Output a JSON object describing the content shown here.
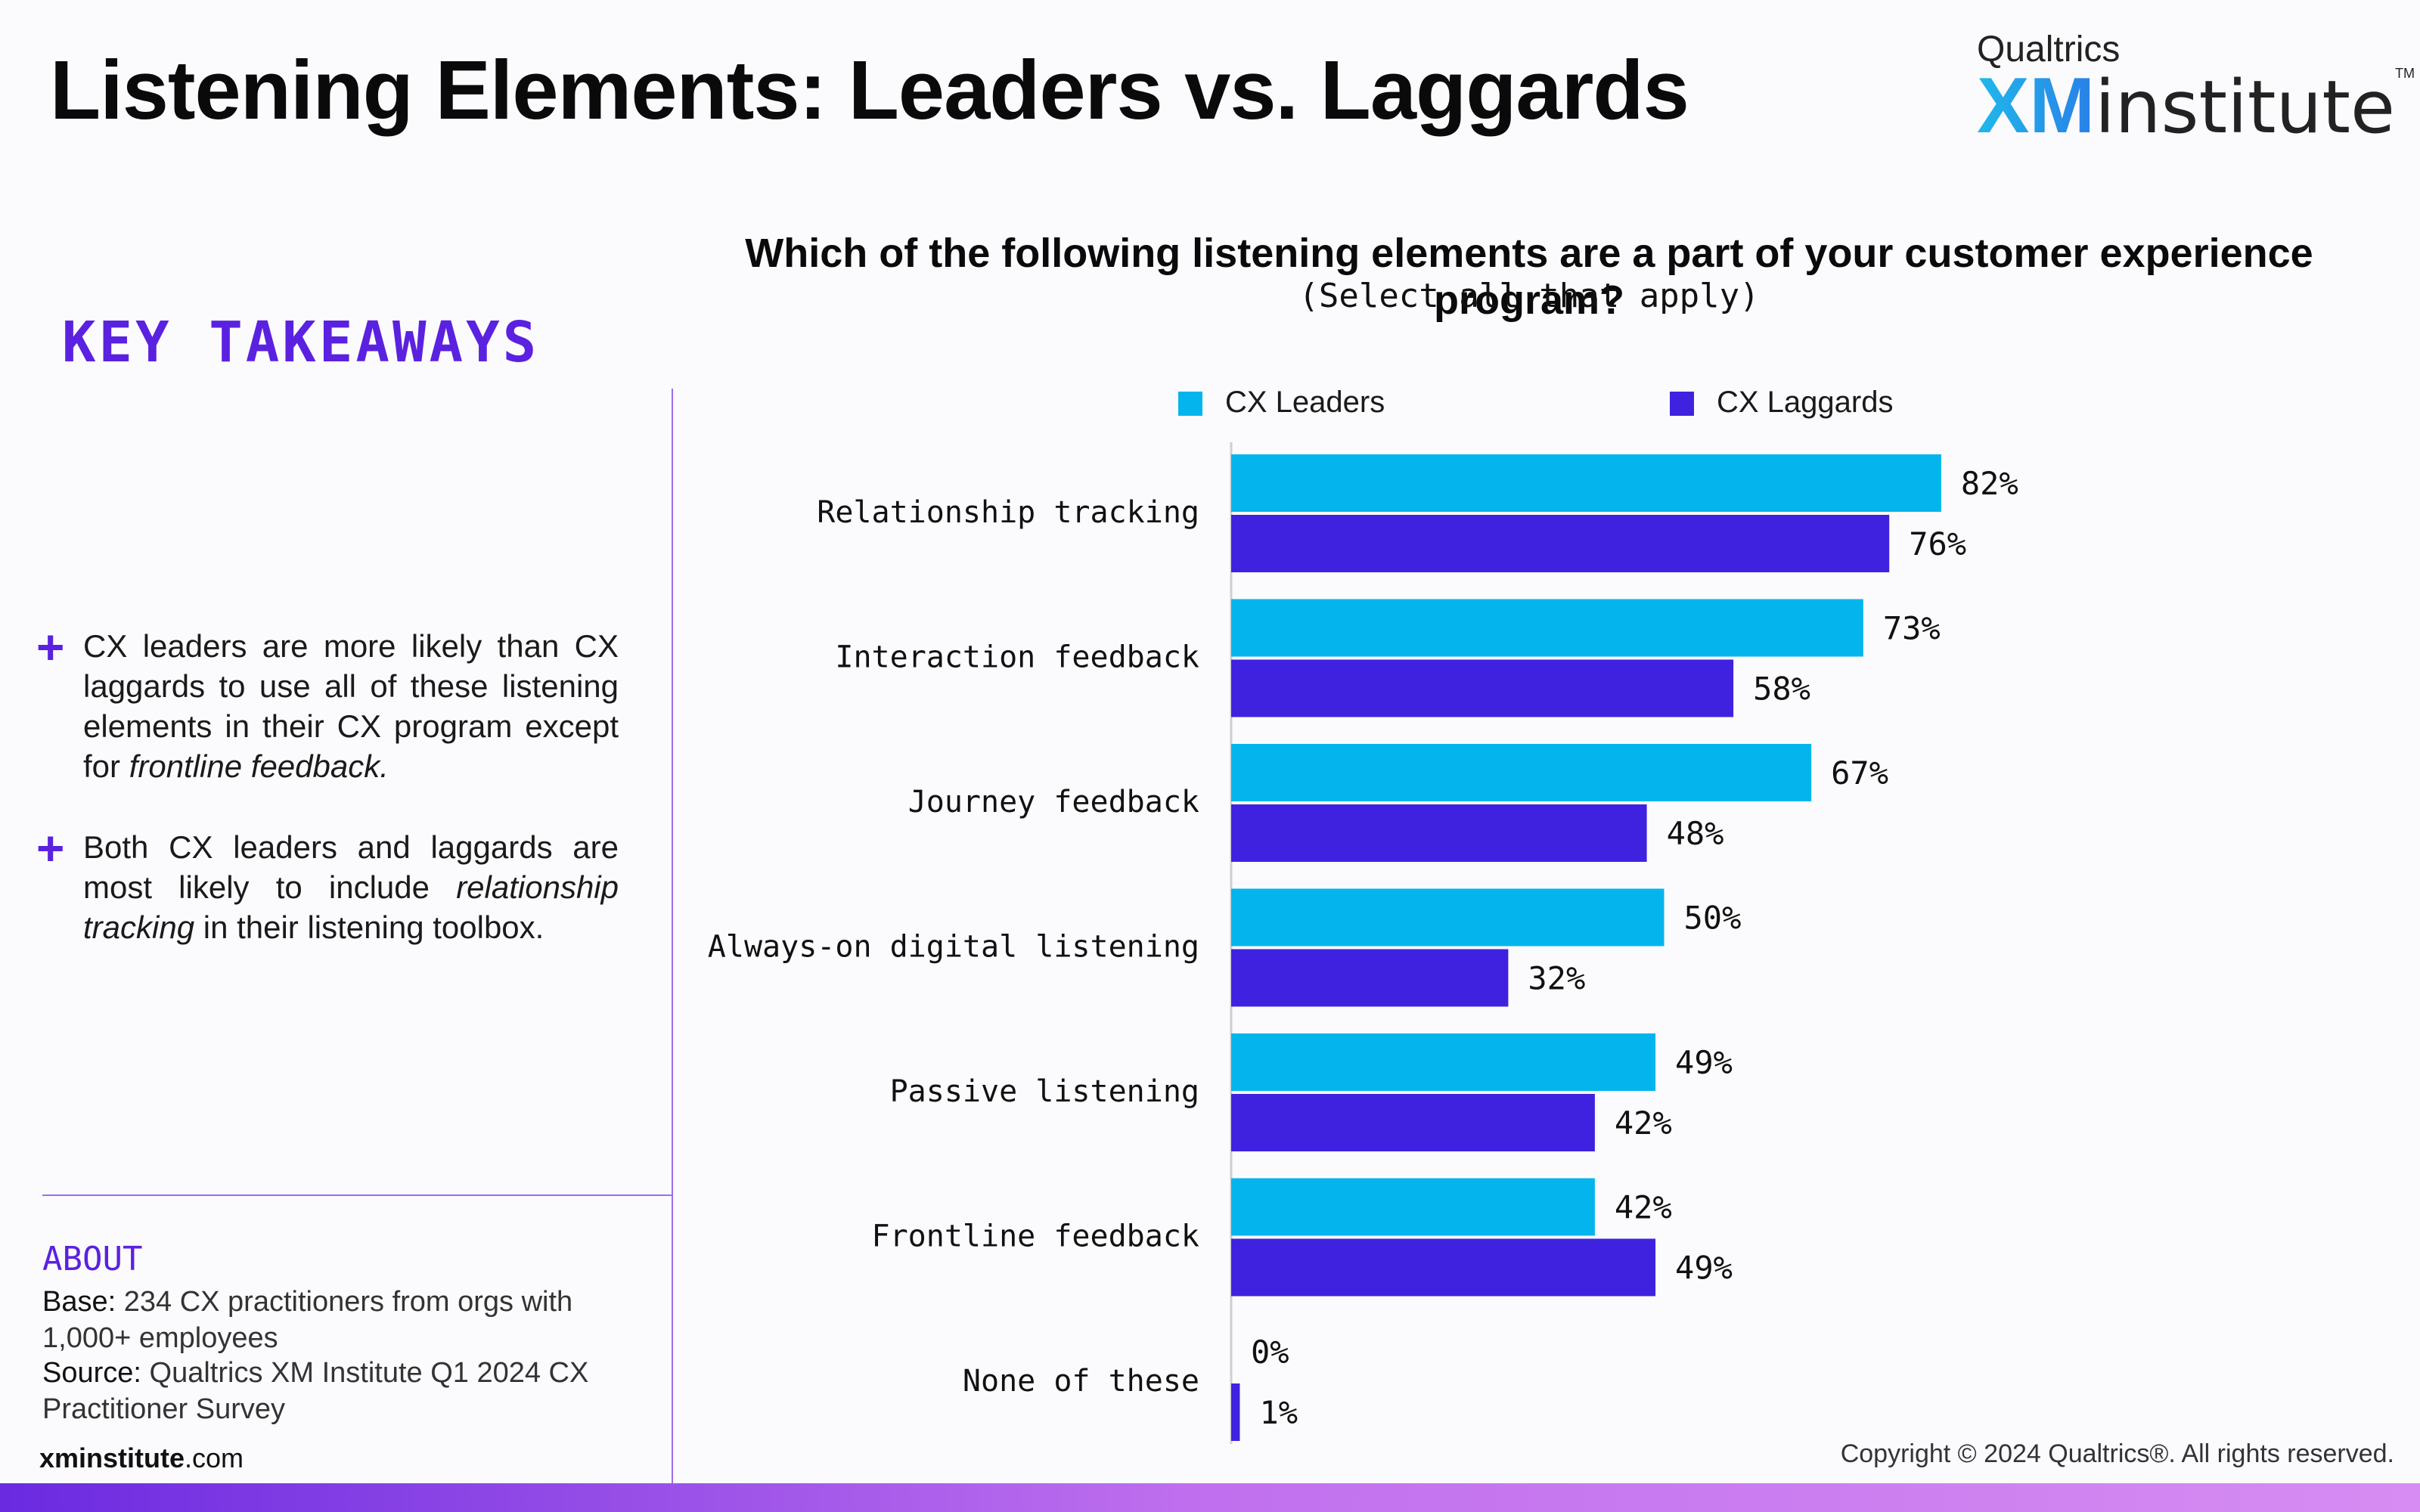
{
  "header": {
    "title": "Listening Elements: Leaders vs. Laggards",
    "logo_top": "Qualtrics",
    "logo_xm": "XM",
    "logo_institute": "institute",
    "logo_tm": "TM"
  },
  "takeaways": {
    "heading": "KEY TAKEAWAYS",
    "bullet1_pre": "CX leaders are more likely than CX laggards to use all of these listening elements in their CX program except for ",
    "bullet1_em": "frontline feedback.",
    "bullet2_pre": "Both CX leaders and laggards are most likely to include ",
    "bullet2_em": "relationship tracking",
    "bullet2_post": " in their listening toolbox."
  },
  "about": {
    "heading": "ABOUT",
    "base_label": "Base:",
    "base_text": " 234 CX practitioners from orgs with 1,000+ employees",
    "source_label": "Source:",
    "source_text": " Qualtrics XM Institute Q1 2024 CX Practitioner Survey",
    "site_bold": "xminstitute",
    "site_rest": ".com"
  },
  "footer": {
    "copyright": "Copyright © 2024 Qualtrics®. All rights reserved."
  },
  "colors": {
    "leaders": "#03b5ec",
    "laggards": "#3f22df",
    "accent": "#5b21e0"
  },
  "chart_data": {
    "type": "bar",
    "orientation": "horizontal",
    "title": "Which of the following listening elements are a part of your customer experience program?",
    "subtitle": "(Select all that apply)",
    "categories": [
      "Relationship tracking",
      "Interaction feedback",
      "Journey feedback",
      "Always-on digital listening",
      "Passive listening",
      "Frontline feedback",
      "None of these"
    ],
    "series": [
      {
        "name": "CX Leaders",
        "values": [
          82,
          73,
          67,
          50,
          49,
          42,
          0
        ]
      },
      {
        "name": "CX Laggards",
        "values": [
          76,
          58,
          48,
          32,
          42,
          49,
          1
        ]
      }
    ],
    "value_suffix": "%",
    "legend": "top",
    "xlim": [
      0,
      100
    ]
  }
}
